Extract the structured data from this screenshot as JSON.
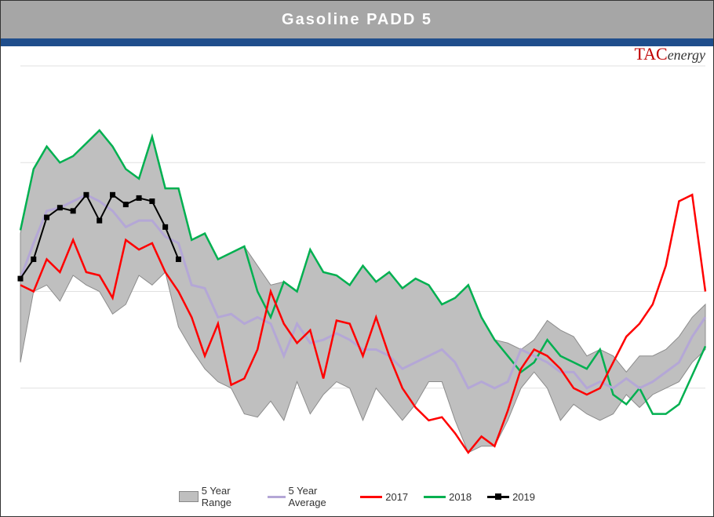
{
  "title": "Gasoline PADD 5",
  "logo": {
    "brand": "TAC",
    "suffix": "energy"
  },
  "chart": {
    "type": "line-area",
    "weeks": 53,
    "ylim": [
      24,
      37
    ],
    "gridlines_y": [
      27,
      30,
      34,
      37
    ],
    "background_color": "#ffffff",
    "grid_color": "#e0e0e0",
    "title_fontsize": 20,
    "title_color": "#ffffff",
    "title_bg": "#a6a6a6",
    "accent_bar": "#1f4e8c",
    "series": {
      "range_upper": {
        "label": "5 Year Range",
        "color_fill": "#bfbfbf",
        "color_stroke": "#8c8c8c",
        "stroke_width": 1,
        "data": [
          31.8,
          33.8,
          34.5,
          34.0,
          34.2,
          34.6,
          35.0,
          34.5,
          33.8,
          33.5,
          34.8,
          33.2,
          33.2,
          31.6,
          31.8,
          31.0,
          31.2,
          31.4,
          30.8,
          30.2,
          30.3,
          30.0,
          31.3,
          30.6,
          30.5,
          30.2,
          30.8,
          30.3,
          30.6,
          30.1,
          30.4,
          30.2,
          29.6,
          29.8,
          30.2,
          29.2,
          28.5,
          28.4,
          28.2,
          28.5,
          29.1,
          28.8,
          28.6,
          28.0,
          28.2,
          28.0,
          27.5,
          28.0,
          28.0,
          28.2,
          28.6,
          29.2,
          29.6
        ]
      },
      "range_lower": {
        "data": [
          27.8,
          30.0,
          30.2,
          29.7,
          30.5,
          30.2,
          30.0,
          29.3,
          29.6,
          30.5,
          30.2,
          30.6,
          28.9,
          28.2,
          27.6,
          27.2,
          27.0,
          26.2,
          26.1,
          26.6,
          26.0,
          27.2,
          26.2,
          26.8,
          27.2,
          27.0,
          26.0,
          27.0,
          26.5,
          26.0,
          26.5,
          27.2,
          27.2,
          26.0,
          25.0,
          25.2,
          25.2,
          26.0,
          27.0,
          27.5,
          27.0,
          26.0,
          26.5,
          26.2,
          26.0,
          26.2,
          26.8,
          26.4,
          26.8,
          27.0,
          27.2,
          27.8,
          28.2
        ]
      },
      "avg": {
        "label": "5 Year Average",
        "color": "#b4a7d6",
        "stroke_width": 3,
        "data": [
          30.4,
          31.5,
          32.5,
          32.6,
          32.8,
          33.0,
          32.8,
          32.5,
          32.0,
          32.2,
          32.2,
          31.7,
          31.5,
          30.2,
          30.1,
          29.2,
          29.3,
          29.0,
          29.2,
          29.0,
          28.0,
          29.0,
          28.4,
          28.5,
          28.7,
          28.5,
          28.2,
          28.2,
          28.0,
          27.6,
          27.8,
          28.0,
          28.2,
          27.8,
          27.0,
          27.2,
          27.0,
          27.2,
          28.2,
          28.0,
          27.8,
          27.5,
          27.5,
          27.0,
          27.2,
          27.0,
          27.3,
          27.0,
          27.2,
          27.5,
          27.8,
          28.6,
          29.2
        ]
      },
      "s2017": {
        "label": "2017",
        "color": "#ff0000",
        "stroke_width": 2.5,
        "data": [
          30.2,
          30.0,
          31.0,
          30.6,
          31.6,
          30.6,
          30.5,
          29.8,
          31.6,
          31.3,
          31.5,
          30.6,
          30.0,
          29.2,
          28.0,
          29.0,
          27.1,
          27.3,
          28.2,
          30.0,
          29.0,
          28.4,
          28.8,
          27.3,
          29.1,
          29.0,
          28.0,
          29.2,
          28.0,
          27.0,
          26.4,
          26.0,
          26.1,
          25.6,
          25.0,
          25.5,
          25.2,
          26.3,
          27.6,
          28.2,
          28.0,
          27.6,
          27.0,
          26.8,
          27.0,
          27.8,
          28.6,
          29.0,
          29.6,
          30.8,
          32.8,
          33.0,
          30.0
        ]
      },
      "s2018": {
        "label": "2018",
        "color": "#00b050",
        "stroke_width": 2.5,
        "data": [
          31.9,
          33.8,
          34.5,
          34.0,
          34.2,
          34.6,
          35.0,
          34.5,
          33.8,
          33.5,
          34.8,
          33.2,
          33.2,
          31.6,
          31.8,
          31.0,
          31.2,
          31.4,
          30.0,
          29.2,
          30.3,
          30.0,
          31.3,
          30.6,
          30.5,
          30.2,
          30.8,
          30.3,
          30.6,
          30.1,
          30.4,
          30.2,
          29.6,
          29.8,
          30.2,
          29.2,
          28.5,
          28.0,
          27.5,
          27.8,
          28.5,
          28.0,
          27.8,
          27.6,
          28.2,
          26.8,
          26.5,
          27.0,
          26.2,
          26.2,
          26.5,
          27.4,
          28.3
        ]
      },
      "s2019": {
        "label": "2019",
        "color": "#000000",
        "stroke_width": 2,
        "marker": "square",
        "marker_size": 7,
        "data": [
          30.4,
          31.0,
          32.3,
          32.6,
          32.5,
          33.0,
          32.2,
          33.0,
          32.7,
          32.9,
          32.8,
          32.0,
          31.0
        ]
      }
    },
    "legend": {
      "position": "bottom-center",
      "items": [
        "5 Year Range",
        "5 Year Average",
        "2017",
        "2018",
        "2019"
      ]
    }
  }
}
